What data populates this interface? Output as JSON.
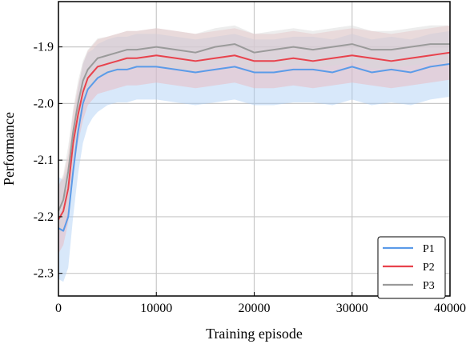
{
  "chart_data": {
    "type": "line",
    "title": "",
    "xlabel": "Training episode",
    "ylabel": "Performance",
    "xlim": [
      0,
      40000
    ],
    "ylim": [
      -2.34,
      -1.82
    ],
    "xticks": [
      0,
      10000,
      20000,
      30000,
      40000
    ],
    "xtick_labels": [
      "0",
      "10000",
      "20000",
      "30000",
      "40000"
    ],
    "yticks": [
      -2.3,
      -2.2,
      -2.1,
      -2.0,
      -1.9
    ],
    "ytick_labels": [
      "-2.3",
      "-2.2",
      "-2.1",
      "-2.0",
      "-1.9"
    ],
    "grid": true,
    "legend_position": "bottom-right",
    "series": [
      {
        "name": "P1",
        "color": "#5b9be8",
        "band_color": "#a9cbf5",
        "x": [
          0,
          500,
          1000,
          1500,
          2000,
          2500,
          3000,
          3500,
          4000,
          5000,
          6000,
          7000,
          8000,
          10000,
          12000,
          14000,
          16000,
          18000,
          20000,
          22000,
          24000,
          26000,
          28000,
          30000,
          32000,
          34000,
          36000,
          38000,
          40000
        ],
        "y": [
          -2.22,
          -2.225,
          -2.2,
          -2.12,
          -2.05,
          -2.0,
          -1.975,
          -1.965,
          -1.955,
          -1.945,
          -1.94,
          -1.94,
          -1.935,
          -1.935,
          -1.94,
          -1.945,
          -1.94,
          -1.935,
          -1.945,
          -1.945,
          -1.94,
          -1.94,
          -1.945,
          -1.935,
          -1.945,
          -1.94,
          -1.945,
          -1.935,
          -1.93
        ],
        "band": [
          0.09,
          0.09,
          0.09,
          0.08,
          0.075,
          0.07,
          0.065,
          0.06,
          0.06,
          0.058,
          0.058,
          0.058,
          0.058,
          0.058,
          0.058,
          0.058,
          0.058,
          0.058,
          0.058,
          0.058,
          0.058,
          0.058,
          0.058,
          0.058,
          0.058,
          0.058,
          0.058,
          0.058,
          0.058
        ]
      },
      {
        "name": "P2",
        "color": "#e8424c",
        "band_color": "#eeb4b8",
        "x": [
          0,
          500,
          1000,
          1500,
          2000,
          2500,
          3000,
          3500,
          4000,
          5000,
          6000,
          7000,
          8000,
          10000,
          12000,
          14000,
          16000,
          18000,
          20000,
          22000,
          24000,
          26000,
          28000,
          30000,
          32000,
          34000,
          36000,
          38000,
          40000
        ],
        "y": [
          -2.205,
          -2.19,
          -2.15,
          -2.07,
          -2.02,
          -1.98,
          -1.955,
          -1.945,
          -1.935,
          -1.93,
          -1.925,
          -1.92,
          -1.92,
          -1.915,
          -1.92,
          -1.925,
          -1.92,
          -1.915,
          -1.925,
          -1.925,
          -1.92,
          -1.925,
          -1.92,
          -1.915,
          -1.92,
          -1.925,
          -1.92,
          -1.915,
          -1.91
        ],
        "band": [
          0.06,
          0.06,
          0.06,
          0.055,
          0.05,
          0.05,
          0.048,
          0.048,
          0.048,
          0.048,
          0.048,
          0.048,
          0.048,
          0.048,
          0.048,
          0.048,
          0.048,
          0.048,
          0.048,
          0.048,
          0.048,
          0.048,
          0.048,
          0.048,
          0.048,
          0.048,
          0.048,
          0.048,
          0.048
        ]
      },
      {
        "name": "P3",
        "color": "#9a9a9a",
        "band_color": "#d6d6d6",
        "x": [
          0,
          500,
          1000,
          1500,
          2000,
          2500,
          3000,
          3500,
          4000,
          5000,
          6000,
          7000,
          8000,
          10000,
          12000,
          14000,
          16000,
          18000,
          20000,
          22000,
          24000,
          26000,
          28000,
          30000,
          32000,
          34000,
          36000,
          38000,
          40000
        ],
        "y": [
          -2.19,
          -2.17,
          -2.12,
          -2.05,
          -2.0,
          -1.96,
          -1.94,
          -1.93,
          -1.92,
          -1.915,
          -1.91,
          -1.905,
          -1.905,
          -1.9,
          -1.905,
          -1.91,
          -1.9,
          -1.895,
          -1.91,
          -1.905,
          -1.9,
          -1.905,
          -1.9,
          -1.895,
          -1.905,
          -1.905,
          -1.9,
          -1.895,
          -1.895
        ],
        "band": [
          0.045,
          0.045,
          0.045,
          0.04,
          0.04,
          0.035,
          0.035,
          0.035,
          0.035,
          0.033,
          0.033,
          0.033,
          0.033,
          0.033,
          0.033,
          0.033,
          0.033,
          0.033,
          0.033,
          0.033,
          0.033,
          0.033,
          0.033,
          0.033,
          0.033,
          0.033,
          0.033,
          0.033,
          0.033
        ]
      }
    ]
  }
}
